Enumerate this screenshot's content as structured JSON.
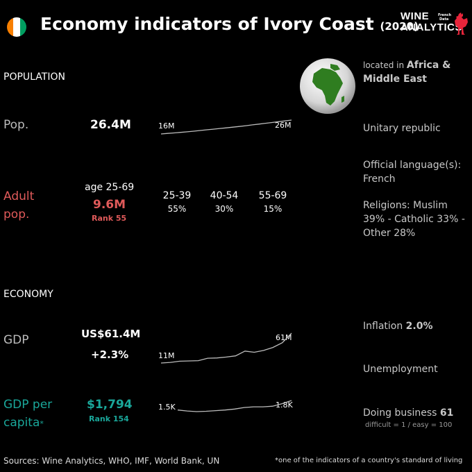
{
  "header": {
    "title": "Economy indicators of Ivory Coast",
    "year": "(2020)",
    "flag_colors": [
      "#F77F00",
      "#FFFFFF",
      "#009E60"
    ],
    "brand_line1": "WINE",
    "brand_line2": "ANALYTICS",
    "brand_small1": "French",
    "brand_small2": "Data",
    "brand_accent": "#E8253B"
  },
  "population": {
    "section_label": "POPULATION",
    "pop_label": "Pop.",
    "pop_value": "26.4M",
    "pop_spark_start": "16M",
    "pop_spark_end": "26M",
    "pop_spark_values": [
      16,
      16.4,
      16.8,
      17.2,
      17.6,
      18.1,
      18.6,
      19.1,
      19.6,
      20.1,
      20.6,
      21.1,
      21.6,
      22.2,
      22.8,
      23.4,
      24.0,
      24.6,
      25.2,
      25.8,
      26.4
    ],
    "adult_label_line1": "Adult",
    "adult_label_line2": "pop.",
    "adult_age": "age 25-69",
    "adult_value": "9.6M",
    "adult_rank": "Rank 55",
    "groups": [
      {
        "range": "25-39",
        "pct": "55%"
      },
      {
        "range": "40-54",
        "pct": "30%"
      },
      {
        "range": "55-69",
        "pct": "15%"
      }
    ],
    "adult_color": "#E05A5A"
  },
  "info": {
    "located_prefix": "located in ",
    "region_line1": "Africa &",
    "region_line2": "Middle East",
    "government": "Unitary republic",
    "language_label": "Official language(s):",
    "language_value": "French",
    "religion_line1": "Religions: Muslim",
    "religion_line2": "39% - Catholic 33% -",
    "religion_line3": "Other 28%"
  },
  "economy": {
    "section_label": "ECONOMY",
    "gdp_label": "GDP",
    "gdp_value": "US$61.4M",
    "gdp_growth": "+2.3%",
    "gdp_spark_start": "11M",
    "gdp_spark_end": "61M",
    "gdp_spark_values": [
      11,
      12,
      14,
      14.5,
      15,
      19,
      19.5,
      21,
      23,
      31,
      29,
      32,
      37,
      45,
      61
    ],
    "gdppc_label_line1": "GDP per",
    "gdppc_label_line2": "capita",
    "gdppc_asterisk": "*",
    "gdppc_value": "$1,794",
    "gdppc_rank": "Rank 154",
    "gdppc_spark_start": "1.5K",
    "gdppc_spark_end": "1.8K",
    "gdppc_spark_values": [
      1.5,
      1.47,
      1.45,
      1.46,
      1.48,
      1.5,
      1.53,
      1.58,
      1.6,
      1.6,
      1.62,
      1.7,
      1.8
    ],
    "gdppc_color": "#1AA79A",
    "inflation_label": "Inflation ",
    "inflation_value": "2.0%",
    "unemployment_label": "Unemployment",
    "business_label": "Doing business ",
    "business_value": "61",
    "business_note": "difficult = 1 / easy = 100"
  },
  "footer": {
    "sources": "Sources: Wine Analytics, WHO, IMF, World Bank, UN",
    "note": "*one of the indicators of a country's standard of living"
  }
}
